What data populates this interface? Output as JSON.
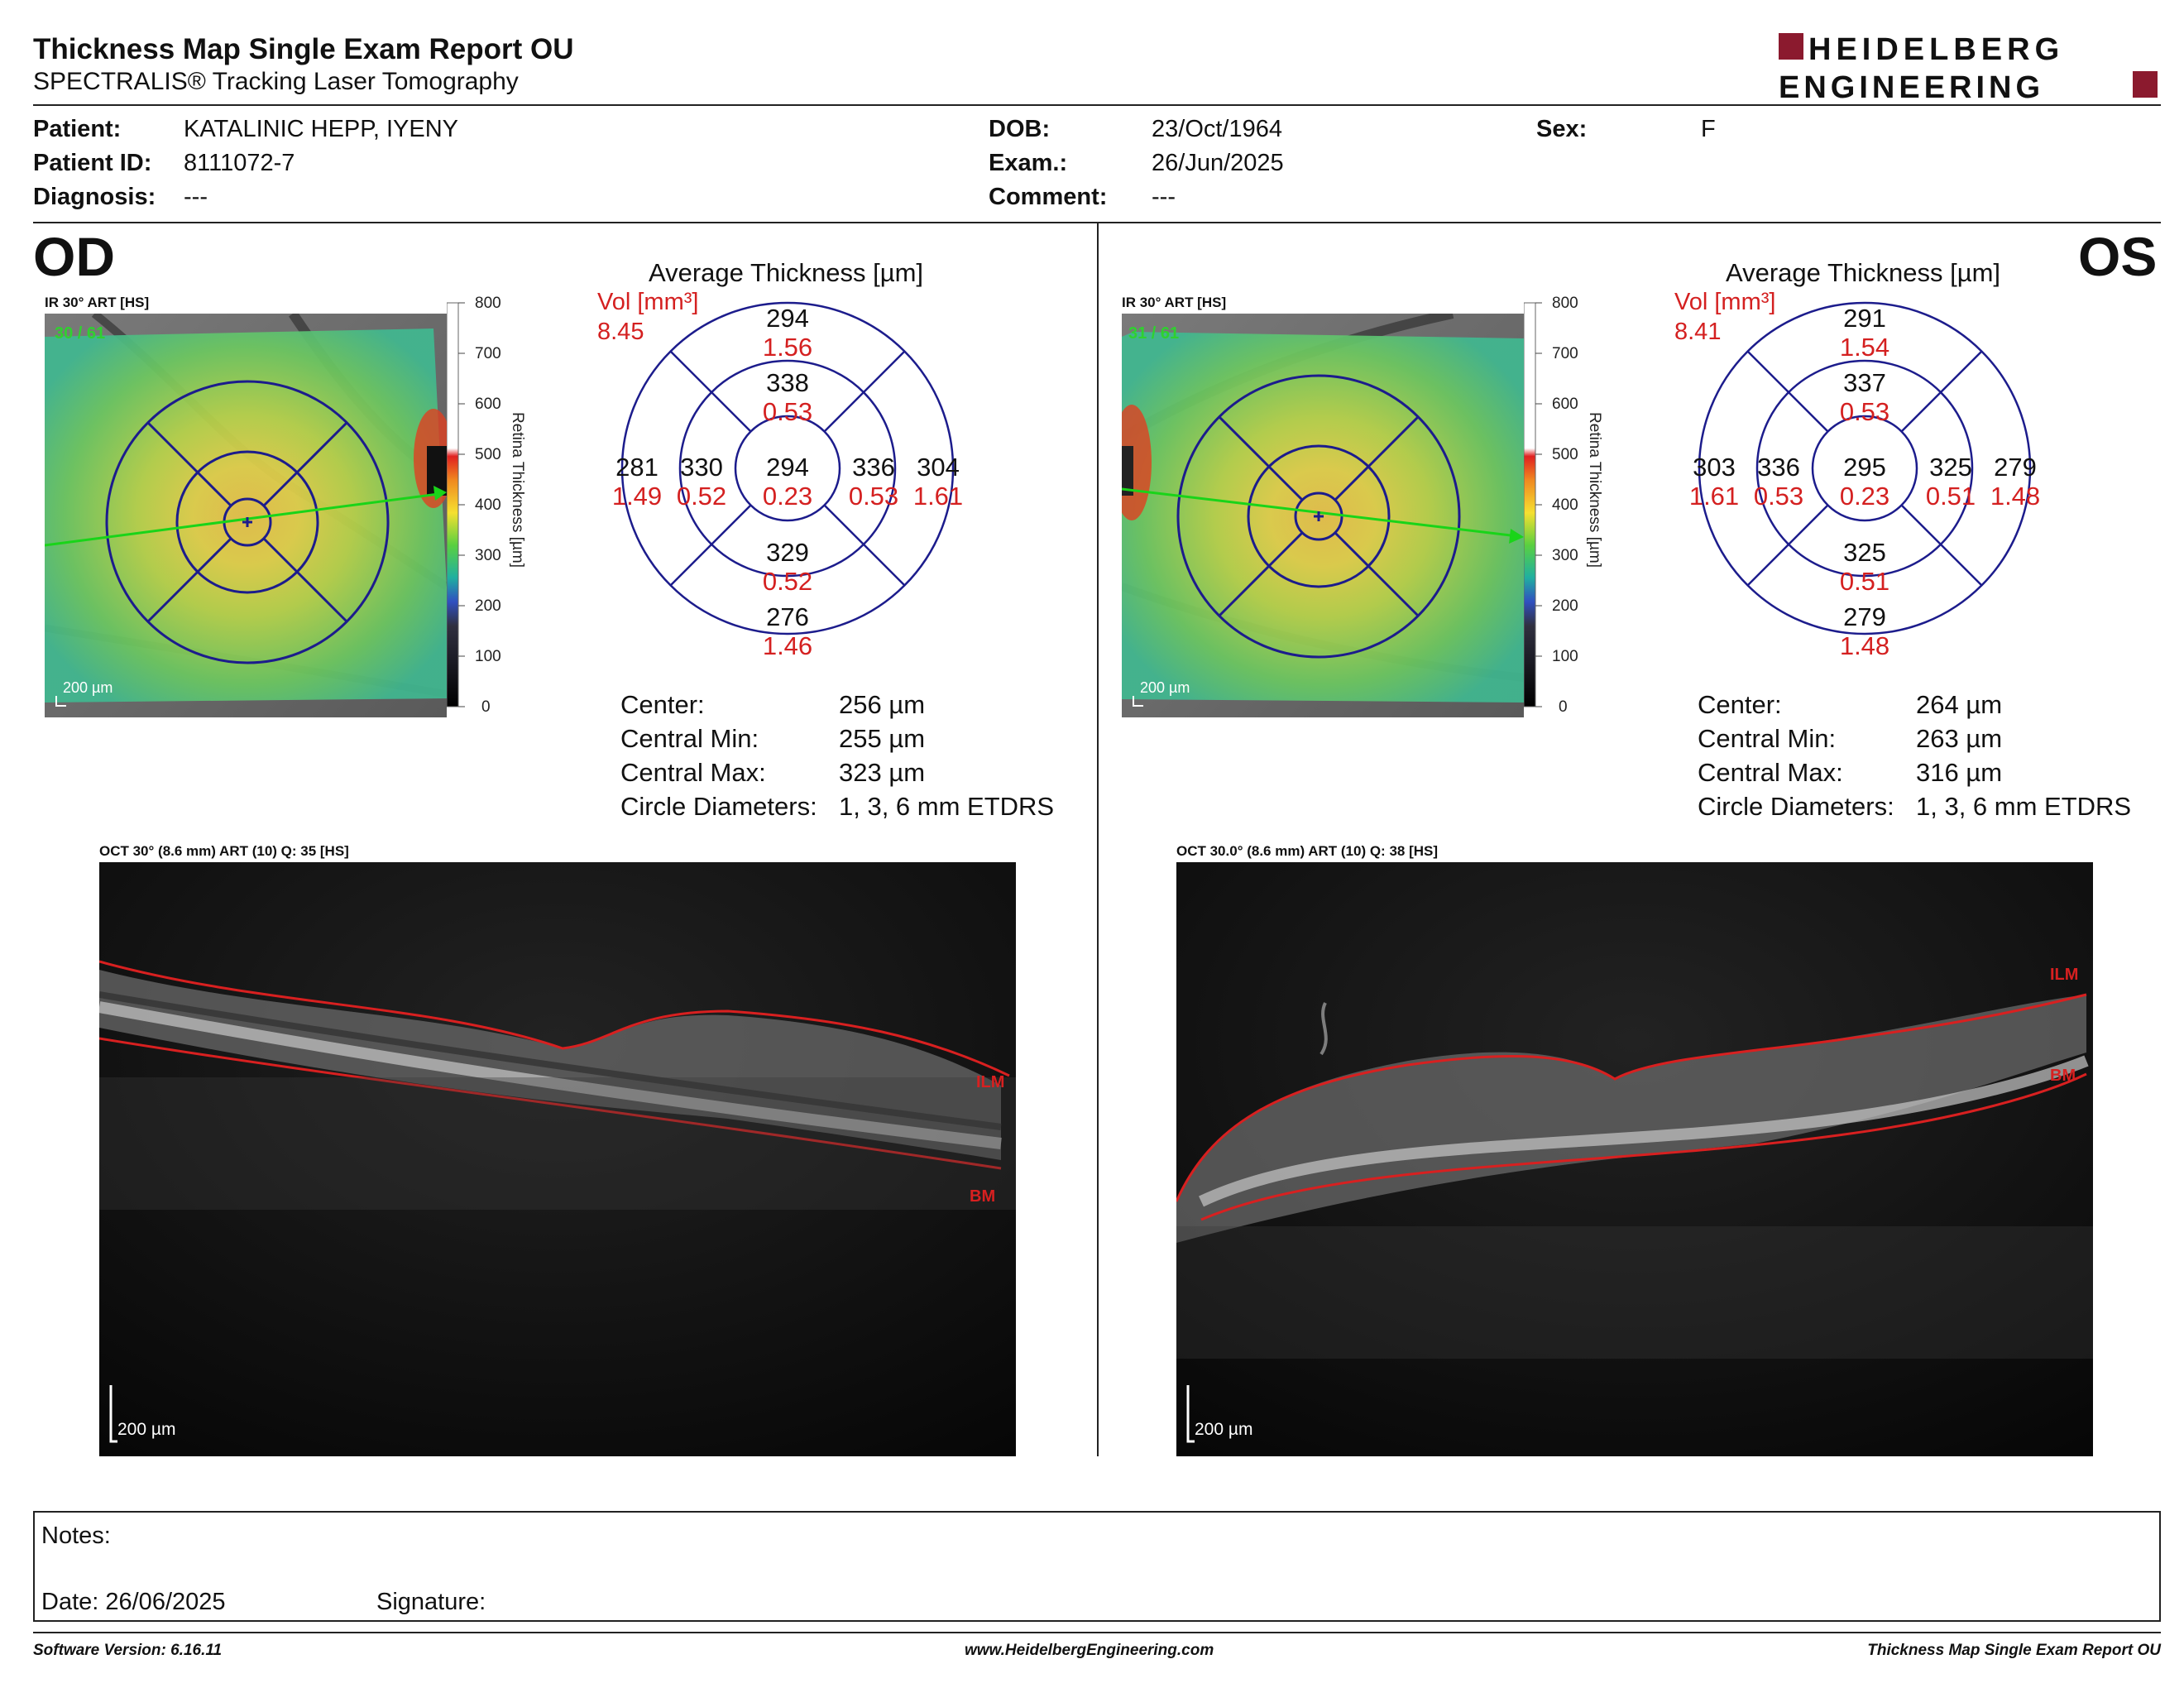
{
  "header": {
    "title": "Thickness Map Single Exam Report OU",
    "subtitle": "SPECTRALIS® Tracking Laser Tomography",
    "logo_line1": "HEIDELBERG",
    "logo_line2": "ENGINEERING",
    "logo_color": "#8b1a2e"
  },
  "patient": {
    "patient_label": "Patient:",
    "patient": "KATALINIC HEPP, IYENY",
    "patient_id_label": "Patient ID:",
    "patient_id": "8111072-7",
    "diagnosis_label": "Diagnosis:",
    "diagnosis": "---",
    "dob_label": "DOB:",
    "dob": "23/Oct/1964",
    "exam_label": "Exam.:",
    "exam": "26/Jun/2025",
    "comment_label": "Comment:",
    "comment": "---",
    "sex_label": "Sex:",
    "sex": "F"
  },
  "od": {
    "eye": "OD",
    "ir_caption": "IR 30° ART [HS]",
    "art_count": "30 / 61",
    "scale_label": "200 µm",
    "avg_title": "Average Thickness [µm]",
    "vol_label": "Vol [mm³]",
    "vol_total": "8.45",
    "etdrs": {
      "outer_top": [
        "294",
        "1.56"
      ],
      "inner_top": [
        "338",
        "0.53"
      ],
      "outer_left": [
        "281",
        "1.49"
      ],
      "inner_left": [
        "330",
        "0.52"
      ],
      "center": [
        "294",
        "0.23"
      ],
      "inner_right": [
        "336",
        "0.53"
      ],
      "outer_right": [
        "304",
        "1.61"
      ],
      "inner_bottom": [
        "329",
        "0.52"
      ],
      "outer_bottom": [
        "276",
        "1.46"
      ]
    },
    "stats": {
      "center_label": "Center:",
      "center": "256 µm",
      "min_label": "Central Min:",
      "min": "255 µm",
      "max_label": "Central Max:",
      "max": "323 µm",
      "diam_label": "Circle Diameters:",
      "diam": "1, 3, 6 mm ETDRS"
    },
    "oct_caption": "OCT 30° (8.6 mm) ART (10) Q: 35 [HS]",
    "oct_scale": "200 µm",
    "ilm": "ILM",
    "bm": "BM"
  },
  "os": {
    "eye": "OS",
    "ir_caption": "IR 30° ART [HS]",
    "art_count": "31 / 61",
    "scale_label": "200 µm",
    "avg_title": "Average Thickness [µm]",
    "vol_label": "Vol [mm³]",
    "vol_total": "8.41",
    "etdrs": {
      "outer_top": [
        "291",
        "1.54"
      ],
      "inner_top": [
        "337",
        "0.53"
      ],
      "outer_left": [
        "303",
        "1.61"
      ],
      "inner_left": [
        "336",
        "0.53"
      ],
      "center": [
        "295",
        "0.23"
      ],
      "inner_right": [
        "325",
        "0.51"
      ],
      "outer_right": [
        "279",
        "1.48"
      ],
      "inner_bottom": [
        "325",
        "0.51"
      ],
      "outer_bottom": [
        "279",
        "1.48"
      ]
    },
    "stats": {
      "center_label": "Center:",
      "center": "264 µm",
      "min_label": "Central Min:",
      "min": "263 µm",
      "max_label": "Central Max:",
      "max": "316 µm",
      "diam_label": "Circle Diameters:",
      "diam": "1, 3, 6 mm ETDRS"
    },
    "oct_caption": "OCT 30.0° (8.6 mm) ART (10) Q: 38 [HS]",
    "oct_scale": "200 µm",
    "ilm": "ILM",
    "bm": "BM"
  },
  "colorbar": {
    "ticks": [
      "800",
      "700",
      "600",
      "500",
      "400",
      "300",
      "200",
      "100",
      "0"
    ],
    "label": "Retina  Thickness [µm]"
  },
  "colors": {
    "etdrs_grid": "#1c1c8c",
    "volume_text": "#d42020",
    "scan_line": "#19d419",
    "segmentation": "#d82020"
  },
  "notes": {
    "notes_label": "Notes:",
    "date_label": "Date: 26/06/2025",
    "signature_label": "Signature:"
  },
  "footer": {
    "software": "Software Version: 6.16.11",
    "website": "www.HeidelbergEngineering.com",
    "report": "Thickness Map Single Exam Report OU"
  }
}
